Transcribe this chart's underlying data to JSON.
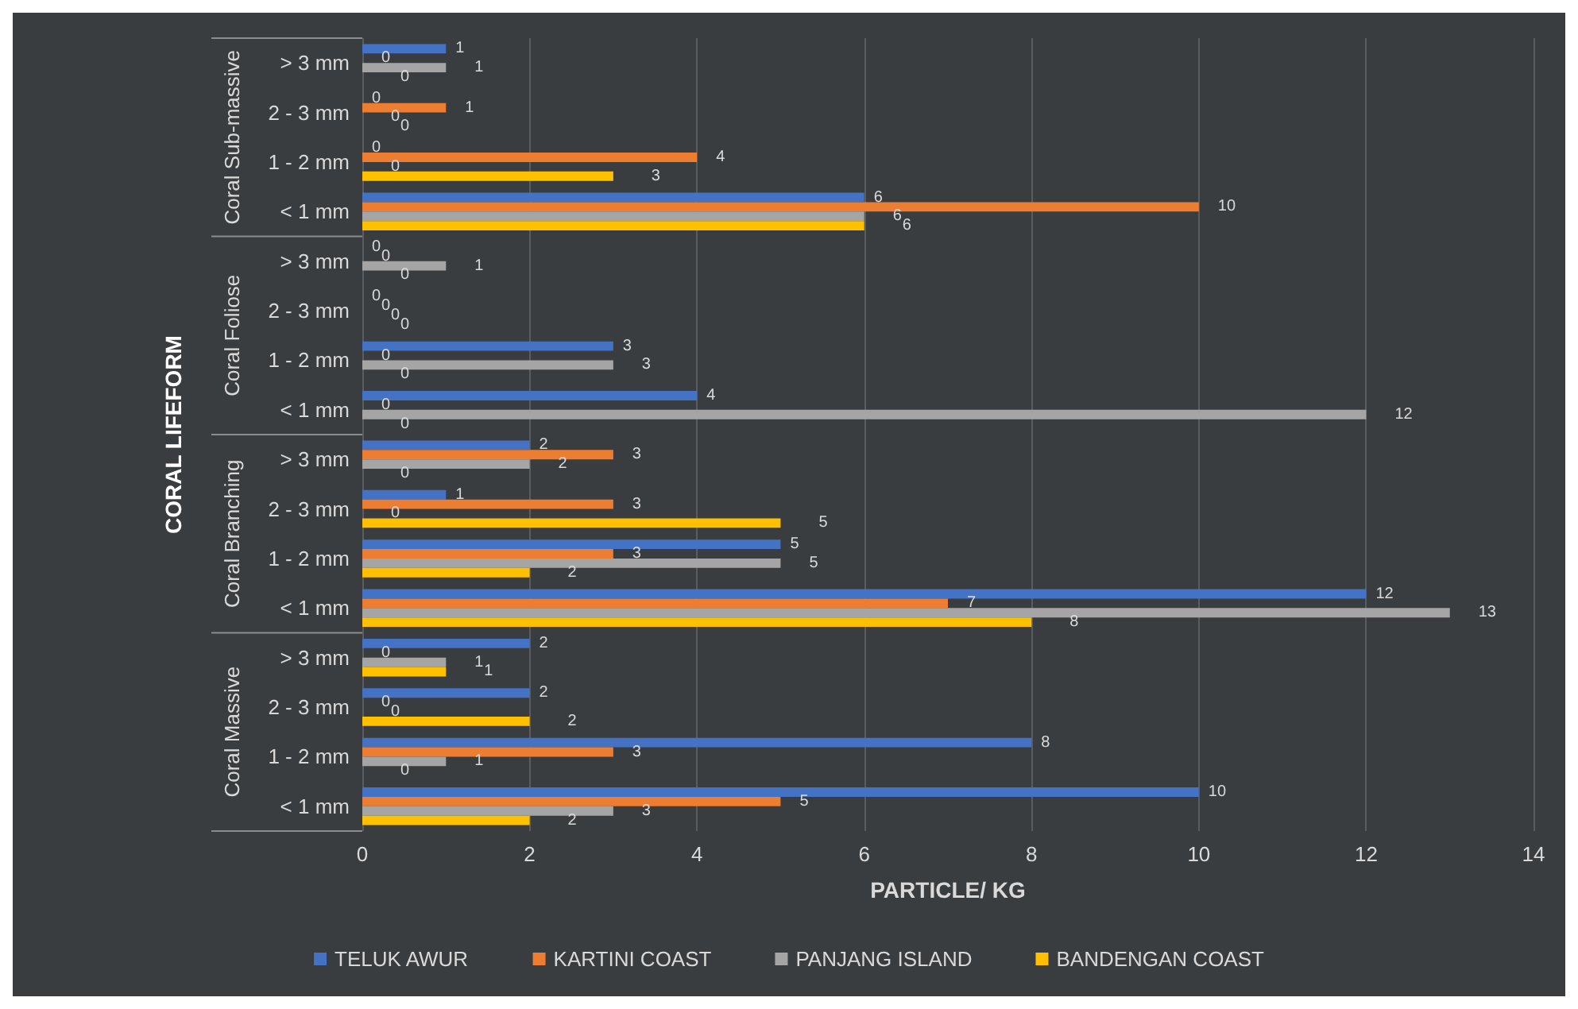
{
  "chart_data": {
    "type": "bar",
    "orientation": "horizontal",
    "xlabel": "PARTICLE/ KG",
    "ylabel": "CORAL LIFEFORM",
    "categories": [
      "> 3 mm",
      "2 - 3 mm",
      "1 - 2 mm",
      "< 1 mm",
      "> 3 mm",
      "2 - 3 mm",
      "1 - 2 mm",
      "< 1 mm",
      "> 3 mm",
      "2 - 3 mm",
      "1 - 2 mm",
      "< 1 mm",
      "> 3 mm",
      "2 - 3 mm",
      "1 - 2 mm",
      "< 1 mm"
    ],
    "annotations": [
      "Coral Sub-massive",
      "Coral Foliose",
      "Coral Branching",
      "Coral Massive"
    ],
    "series": [
      {
        "name": "TELUK AWUR",
        "color": "#4472c4",
        "values": [
          1,
          0,
          0,
          6,
          0,
          0,
          3,
          4,
          2,
          1,
          5,
          12,
          2,
          2,
          8,
          10
        ]
      },
      {
        "name": "KARTINI COAST",
        "color": "#ed7d31",
        "values": [
          0,
          1,
          4,
          10,
          0,
          0,
          0,
          0,
          3,
          3,
          3,
          7,
          0,
          0,
          3,
          5
        ]
      },
      {
        "name": "PANJANG ISLAND",
        "color": "#a5a5a5",
        "values": [
          1,
          0,
          0,
          6,
          1,
          0,
          3,
          12,
          2,
          0,
          5,
          13,
          1,
          0,
          1,
          3
        ]
      },
      {
        "name": "BANDENGAN COAST",
        "color": "#ffc000",
        "values": [
          0,
          0,
          3,
          6,
          0,
          0,
          0,
          0,
          0,
          5,
          2,
          8,
          1,
          2,
          0,
          2
        ]
      }
    ],
    "xlim": [
      0,
      14
    ],
    "xticks": [
      0,
      2,
      4,
      6,
      8,
      10,
      12,
      14
    ],
    "grid": "x",
    "legend": "bottom",
    "data_labels": true
  }
}
